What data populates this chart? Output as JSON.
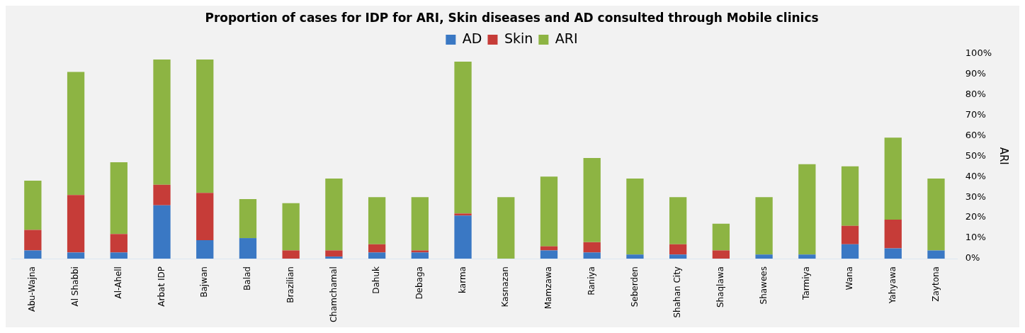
{
  "chart_data": {
    "type": "bar",
    "title": "Proportion of cases for IDP for ARI, Skin diseases and AD consulted through Mobile clinics",
    "categories": [
      "Abu-Wajna",
      "Al Shabbi",
      "Al-Ahell",
      "Arbat IDP",
      "Bajwan",
      "Balad",
      "Brazilian",
      "Chamchamal",
      "Dahuk",
      "Debaga",
      "karma",
      "Kasnazan",
      "Mamzawa",
      "Raniya",
      "Seberden",
      "Shahan City",
      "Shaqlawa",
      "Shawees",
      "Tarmiya",
      "Wana",
      "Yahyawa",
      "Zaytona"
    ],
    "series": [
      {
        "name": "AD",
        "color": "#3a78c4",
        "values": [
          4,
          3,
          3,
          26,
          9,
          10,
          0,
          1,
          3,
          3,
          21,
          0,
          4,
          3,
          2,
          2,
          0,
          2,
          2,
          7,
          5,
          4
        ]
      },
      {
        "name": "Skin",
        "color": "#c63c38",
        "values": [
          10,
          28,
          9,
          10,
          23,
          0,
          4,
          3,
          4,
          1,
          1,
          0,
          2,
          5,
          0,
          5,
          4,
          0,
          0,
          9,
          14,
          0
        ]
      },
      {
        "name": "ARI",
        "color": "#8db443",
        "values": [
          24,
          60,
          35,
          61,
          65,
          19,
          23,
          35,
          23,
          26,
          74,
          30,
          34,
          41,
          37,
          23,
          13,
          28,
          44,
          29,
          40,
          35
        ]
      }
    ],
    "stacked": true,
    "ylabel": "ARI",
    "ylim": [
      0,
      100
    ],
    "yticks": [
      {
        "value": 0,
        "label": "0%"
      },
      {
        "value": 10,
        "label": "10%"
      },
      {
        "value": 20,
        "label": "20%"
      },
      {
        "value": 30,
        "label": "30%"
      },
      {
        "value": 40,
        "label": "40%"
      },
      {
        "value": 50,
        "label": "50%"
      },
      {
        "value": 60,
        "label": "60%"
      },
      {
        "value": 70,
        "label": "70%"
      },
      {
        "value": 80,
        "label": "80%"
      },
      {
        "value": 90,
        "label": "90%"
      },
      {
        "value": 100,
        "label": "100%"
      }
    ],
    "grid": false,
    "legend": "top"
  }
}
